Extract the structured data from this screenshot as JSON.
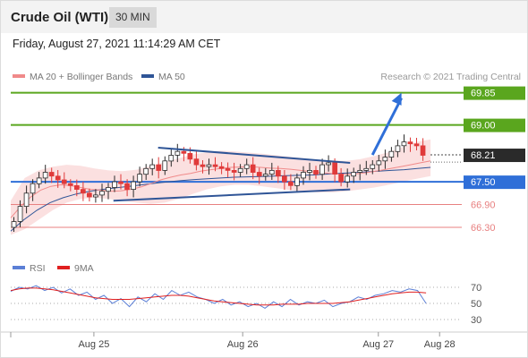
{
  "header": {
    "title": "Crude Oil (WTI)",
    "interval": "30 MIN"
  },
  "timestamp": "Friday, August 27, 2021 11:14:29 AM CET",
  "legend": {
    "ma20": {
      "label": "MA 20 + Bollinger Bands",
      "color": "#f08a8a"
    },
    "ma50": {
      "label": "MA 50",
      "color": "#2f5597"
    }
  },
  "credit": "Research © 2021 Trading Central",
  "rsi_legend": {
    "rsi": {
      "label": "RSI",
      "color": "#5b7fd6"
    },
    "ma9": {
      "label": "9MA",
      "color": "#e02020"
    }
  },
  "colors": {
    "resistance": "#5aa61e",
    "pivot": "#2f6fd8",
    "support": "#e88080",
    "current": "#2a2a2a",
    "candle_up": "#2a2a2a",
    "candle_down": "#e03a3a"
  },
  "chart_data": [
    {
      "type": "candlestick",
      "x_ticks": [
        "Aug 25",
        "Aug 26",
        "Aug 27",
        "Aug 28"
      ],
      "ylim": [
        65.85,
        70.1
      ],
      "levels": [
        {
          "value": 69.85,
          "label": "69.85",
          "kind": "resistance"
        },
        {
          "value": 69.0,
          "label": "69.00",
          "kind": "resistance"
        },
        {
          "value": 68.21,
          "label": "68.21",
          "kind": "current"
        },
        {
          "value": 67.5,
          "label": "67.50",
          "kind": "pivot"
        },
        {
          "value": 66.9,
          "label": "66.90",
          "kind": "support"
        },
        {
          "value": 66.3,
          "label": "66.30",
          "kind": "support"
        }
      ],
      "closes": [
        66.45,
        66.85,
        67.2,
        67.45,
        67.6,
        67.75,
        67.65,
        67.55,
        67.45,
        67.4,
        67.3,
        67.2,
        67.1,
        67.15,
        67.25,
        67.35,
        67.5,
        67.45,
        67.3,
        67.5,
        67.7,
        67.85,
        67.95,
        67.8,
        68.05,
        68.2,
        68.3,
        68.25,
        68.1,
        67.95,
        67.9,
        67.95,
        67.9,
        67.85,
        67.8,
        67.75,
        67.85,
        67.95,
        67.75,
        67.65,
        67.7,
        67.8,
        67.65,
        67.5,
        67.4,
        67.6,
        67.75,
        67.8,
        67.7,
        67.95,
        68.0,
        67.7,
        67.5,
        67.65,
        67.75,
        67.8,
        67.85,
        67.95,
        68.05,
        68.15,
        68.3,
        68.45,
        68.55,
        68.5,
        68.45,
        68.2
      ],
      "ma20": [
        66.55,
        66.85,
        67.1,
        67.28,
        67.38,
        67.42,
        67.4,
        67.35,
        67.3,
        67.28,
        67.25,
        67.26,
        67.3,
        67.36,
        67.45,
        67.55,
        67.62,
        67.68,
        67.72,
        67.78,
        67.82,
        67.85,
        67.88,
        67.89,
        67.9,
        67.88,
        67.86,
        67.85,
        67.83,
        67.8,
        67.77,
        67.74,
        67.72,
        67.7,
        67.7,
        67.72,
        67.76,
        67.8,
        67.85,
        67.9,
        67.95,
        68.0,
        68.05
      ],
      "ma50": [
        66.2,
        66.5,
        66.75,
        66.95,
        67.08,
        67.18,
        67.25,
        67.3,
        67.34,
        67.38,
        67.42,
        67.46,
        67.5,
        67.53,
        67.56,
        67.58,
        67.6,
        67.62,
        67.63,
        67.64,
        67.65,
        67.66,
        67.67,
        67.68,
        67.7,
        67.72,
        67.74,
        67.76,
        67.78,
        67.8,
        67.82,
        67.85,
        67.88
      ],
      "bollinger": {
        "upper": [
          67.0,
          67.6,
          67.8,
          67.9,
          67.95,
          67.92,
          67.85,
          67.8,
          67.78,
          67.82,
          67.92,
          68.02,
          68.12,
          68.22,
          68.28,
          68.32,
          68.3,
          68.27,
          68.24,
          68.2,
          68.16,
          68.12,
          68.08,
          68.06,
          68.05,
          68.1,
          68.18,
          68.28,
          68.42,
          68.55,
          68.62
        ],
        "lower": [
          66.1,
          66.25,
          66.5,
          66.75,
          66.95,
          67.05,
          67.08,
          67.05,
          67.0,
          66.95,
          66.92,
          66.95,
          67.05,
          67.18,
          67.3,
          67.38,
          67.42,
          67.42,
          67.38,
          67.33,
          67.28,
          67.24,
          67.22,
          67.22,
          67.25,
          67.3,
          67.35,
          67.42,
          67.5,
          67.58,
          67.65
        ]
      },
      "trendlines": [
        {
          "from": [
            0.33,
            68.4
          ],
          "to": [
            0.76,
            68.0
          ]
        },
        {
          "from": [
            0.23,
            67.0
          ],
          "to": [
            0.76,
            67.3
          ]
        }
      ],
      "projection": {
        "from": [
          0.81,
          68.21
        ],
        "to": [
          0.875,
          69.85
        ]
      }
    },
    {
      "type": "line",
      "name": "RSI",
      "ylim": [
        20,
        80
      ],
      "y_ticks": [
        70,
        50,
        30
      ],
      "series": [
        {
          "name": "RSI",
          "values": [
            65,
            70,
            68,
            72,
            66,
            70,
            63,
            68,
            60,
            64,
            55,
            60,
            50,
            56,
            46,
            58,
            52,
            62,
            55,
            66,
            60,
            64,
            58,
            55,
            50,
            55,
            48,
            52,
            46,
            50,
            44,
            52,
            46,
            55,
            48,
            52,
            50,
            54,
            46,
            50,
            52,
            58,
            55,
            60,
            62,
            66,
            64,
            68,
            66,
            50
          ]
        },
        {
          "name": "9MA",
          "values": [
            66,
            68,
            69,
            69,
            68,
            67,
            65,
            63,
            61,
            59,
            57,
            56,
            55,
            55,
            55,
            56,
            57,
            58,
            59,
            60,
            60,
            59,
            57,
            55,
            53,
            52,
            51,
            50,
            49,
            48,
            48,
            48,
            49,
            49,
            49,
            50,
            50,
            50,
            50,
            51,
            52,
            54,
            56,
            58,
            60,
            62,
            63,
            64,
            64,
            63
          ]
        }
      ]
    }
  ]
}
